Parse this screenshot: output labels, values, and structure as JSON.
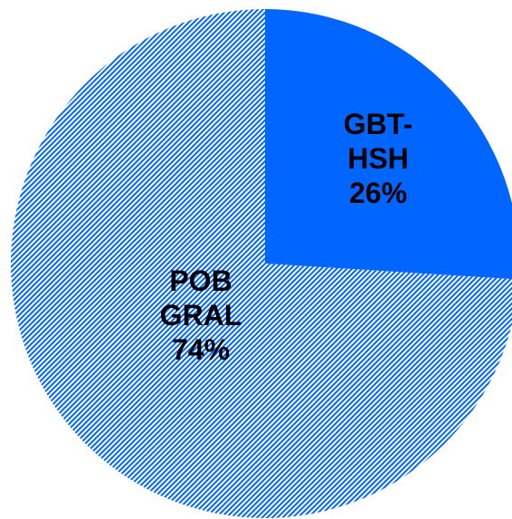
{
  "chart_data": {
    "type": "pie",
    "categories": [
      "GBT-HSH",
      "POB GRAL"
    ],
    "values": [
      26,
      74
    ],
    "value_labels": [
      "26%",
      "74%"
    ],
    "colors": [
      "#0066ff",
      "#0066ff"
    ],
    "hatched": [
      false,
      true
    ]
  }
}
